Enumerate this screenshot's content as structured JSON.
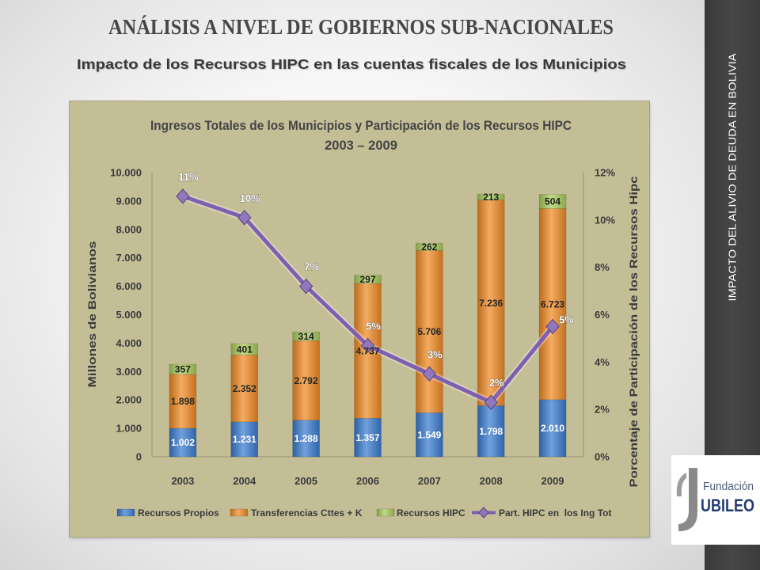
{
  "slide": {
    "title": "ANÁLISIS A NIVEL DE GOBIERNOS SUB-NACIONALES",
    "subtitle": "Impacto de los Recursos HIPC en las cuentas fiscales de los Municipios",
    "sidebar_text": "IMPACTO DEL ALIVIO DE DEUDA EN BOLIVIA",
    "logo": {
      "icon": "jubileo-j-logo-icon",
      "line1": "Fundación",
      "line2": "UBILEO"
    }
  },
  "colors": {
    "sidebar": "#404040",
    "chart_background": "#c4be97",
    "title_text": "#474747"
  },
  "chart_data": {
    "type": "bar",
    "stacked": true,
    "title": "Ingresos Totales de los Municipios y Participación de los Recursos HIPC",
    "subtitle": "2003 – 2009",
    "categories": [
      "2003",
      "2004",
      "2005",
      "2006",
      "2007",
      "2008",
      "2009"
    ],
    "ylabel": "Millones de Bolivianos",
    "ylim": [
      0,
      10000
    ],
    "yticks": [
      {
        "value": 0,
        "label": "0"
      },
      {
        "value": 1000,
        "label": "1.000"
      },
      {
        "value": 2000,
        "label": "2.000"
      },
      {
        "value": 3000,
        "label": "3.000"
      },
      {
        "value": 4000,
        "label": "4.000"
      },
      {
        "value": 5000,
        "label": "5.000"
      },
      {
        "value": 6000,
        "label": "6.000"
      },
      {
        "value": 7000,
        "label": "7.000"
      },
      {
        "value": 8000,
        "label": "8.000"
      },
      {
        "value": 9000,
        "label": "9.000"
      },
      {
        "value": 10000,
        "label": "10.000"
      }
    ],
    "y2label": "Porcentaje de Participación de los Recursos Hipc",
    "y2lim": [
      0,
      12
    ],
    "y2ticks": [
      {
        "value": 0,
        "label": "0%"
      },
      {
        "value": 2,
        "label": "2%"
      },
      {
        "value": 4,
        "label": "4%"
      },
      {
        "value": 6,
        "label": "6%"
      },
      {
        "value": 8,
        "label": "8%"
      },
      {
        "value": 10,
        "label": "10%"
      },
      {
        "value": 12,
        "label": "12%"
      }
    ],
    "grid": false,
    "legend": "bottom",
    "series": [
      {
        "name": "Recursos Propios",
        "type": "bar",
        "axis": "left",
        "color": "#3a7bd0",
        "values": [
          1002,
          1231,
          1288,
          1357,
          1549,
          1798,
          2010
        ],
        "labels": [
          "1.002",
          "1.231",
          "1.288",
          "1.357",
          "1.549",
          "1.798",
          "2.010"
        ]
      },
      {
        "name": "Transferencias Cttes + K",
        "type": "bar",
        "axis": "left",
        "color": "#f08a24",
        "values": [
          1898,
          2352,
          2792,
          4737,
          5706,
          7236,
          6723
        ],
        "labels": [
          "1.898",
          "2.352",
          "2.792",
          "4.737",
          "5.706",
          "7.236",
          "6.723"
        ]
      },
      {
        "name": "Recursos HIPC",
        "type": "bar",
        "axis": "left",
        "color": "#a9cc5c",
        "values": [
          357,
          401,
          314,
          297,
          262,
          213,
          504
        ],
        "labels": [
          "357",
          "401",
          "314",
          "297",
          "262",
          "213",
          "504"
        ]
      },
      {
        "name": "Part. HIPC en  los Ing Tot",
        "type": "line",
        "axis": "right",
        "color": "#7e5fb0",
        "values": [
          11.0,
          10.1,
          7.2,
          4.7,
          3.5,
          2.3,
          5.5
        ],
        "labels": [
          "11%",
          "10%",
          "7%",
          "5%",
          "3%",
          "2%",
          "5%"
        ]
      }
    ]
  }
}
